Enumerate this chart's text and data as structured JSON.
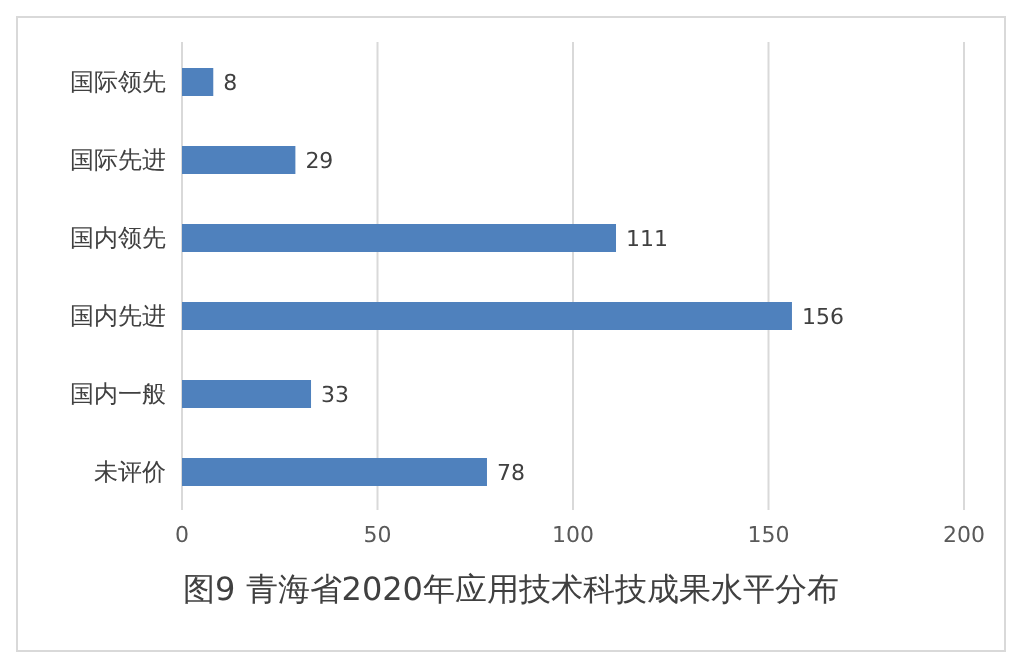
{
  "chart_data": {
    "type": "bar",
    "orientation": "horizontal",
    "title": "图9  青海省2020年应用技术科技成果水平分布",
    "categories": [
      "国际领先",
      "国际先进",
      "国内领先",
      "国内先进",
      "国内一般",
      "未评价"
    ],
    "values": [
      8,
      29,
      111,
      156,
      33,
      78
    ],
    "color": "#4f81bd",
    "data_labels": true,
    "grid": "x",
    "xlim": [
      0,
      200
    ],
    "xticks": [
      0,
      50,
      100,
      150,
      200
    ]
  }
}
